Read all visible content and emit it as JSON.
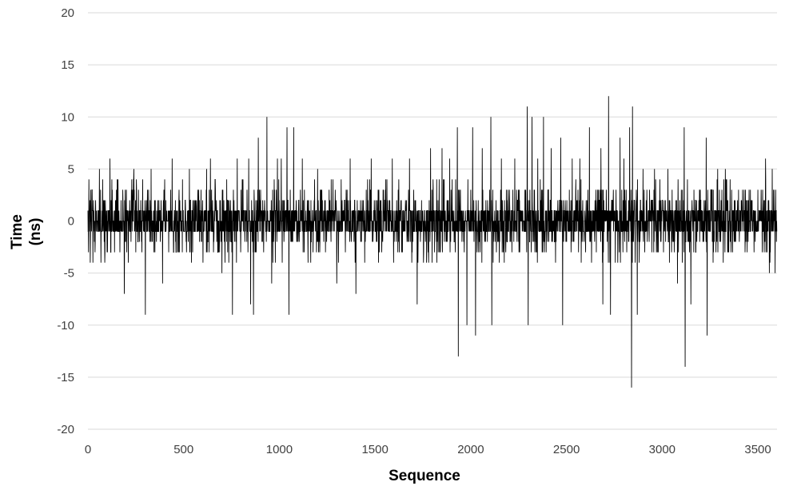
{
  "chart_data": {
    "type": "line",
    "title": "",
    "xlabel": "Sequence",
    "ylabel_lines": [
      "Time",
      "(ns)"
    ],
    "xlim": [
      0,
      3600
    ],
    "ylim": [
      -20,
      20
    ],
    "x_ticks": [
      0,
      500,
      1000,
      1500,
      2000,
      2500,
      3000,
      3500
    ],
    "y_ticks": [
      -20,
      -15,
      -10,
      -5,
      0,
      5,
      10,
      15,
      20
    ],
    "grid": "horizontal",
    "legend": "none",
    "series": [
      {
        "color": "#000000",
        "sample_count": 3600,
        "values_integer_ns": true,
        "peaks": [
          {
            "x": 5,
            "y": 4
          },
          {
            "x": 12,
            "y": -4
          },
          {
            "x": 60,
            "y": 5
          },
          {
            "x": 115,
            "y": 6
          },
          {
            "x": 190,
            "y": -7
          },
          {
            "x": 240,
            "y": 5
          },
          {
            "x": 300,
            "y": -9
          },
          {
            "x": 330,
            "y": 5
          },
          {
            "x": 390,
            "y": -6
          },
          {
            "x": 440,
            "y": 6
          },
          {
            "x": 530,
            "y": 5
          },
          {
            "x": 620,
            "y": 5
          },
          {
            "x": 640,
            "y": 6
          },
          {
            "x": 700,
            "y": -5
          },
          {
            "x": 755,
            "y": -9
          },
          {
            "x": 780,
            "y": 6
          },
          {
            "x": 840,
            "y": 6
          },
          {
            "x": 850,
            "y": -8
          },
          {
            "x": 865,
            "y": -9
          },
          {
            "x": 890,
            "y": 8
          },
          {
            "x": 935,
            "y": 10
          },
          {
            "x": 960,
            "y": -6
          },
          {
            "x": 990,
            "y": 6
          },
          {
            "x": 1010,
            "y": 6
          },
          {
            "x": 1040,
            "y": 9
          },
          {
            "x": 1050,
            "y": -9
          },
          {
            "x": 1075,
            "y": 9
          },
          {
            "x": 1120,
            "y": 6
          },
          {
            "x": 1200,
            "y": 5
          },
          {
            "x": 1300,
            "y": -6
          },
          {
            "x": 1370,
            "y": 6
          },
          {
            "x": 1400,
            "y": -7
          },
          {
            "x": 1480,
            "y": 6
          },
          {
            "x": 1590,
            "y": 6
          },
          {
            "x": 1680,
            "y": 6
          },
          {
            "x": 1720,
            "y": -8
          },
          {
            "x": 1790,
            "y": 7
          },
          {
            "x": 1850,
            "y": 7
          },
          {
            "x": 1890,
            "y": 6
          },
          {
            "x": 1930,
            "y": 9
          },
          {
            "x": 1935,
            "y": -13
          },
          {
            "x": 1980,
            "y": -10
          },
          {
            "x": 2010,
            "y": 9
          },
          {
            "x": 2025,
            "y": -11
          },
          {
            "x": 2060,
            "y": 7
          },
          {
            "x": 2105,
            "y": 10
          },
          {
            "x": 2110,
            "y": -10
          },
          {
            "x": 2160,
            "y": 6
          },
          {
            "x": 2230,
            "y": 6
          },
          {
            "x": 2295,
            "y": 11
          },
          {
            "x": 2300,
            "y": -10
          },
          {
            "x": 2320,
            "y": 10
          },
          {
            "x": 2350,
            "y": 6
          },
          {
            "x": 2380,
            "y": 10
          },
          {
            "x": 2420,
            "y": 7
          },
          {
            "x": 2470,
            "y": 8
          },
          {
            "x": 2480,
            "y": -10
          },
          {
            "x": 2530,
            "y": 6
          },
          {
            "x": 2570,
            "y": 6
          },
          {
            "x": 2620,
            "y": 9
          },
          {
            "x": 2680,
            "y": 7
          },
          {
            "x": 2690,
            "y": -8
          },
          {
            "x": 2720,
            "y": 12
          },
          {
            "x": 2730,
            "y": -9
          },
          {
            "x": 2780,
            "y": 8
          },
          {
            "x": 2800,
            "y": 6
          },
          {
            "x": 2830,
            "y": 9
          },
          {
            "x": 2845,
            "y": 11
          },
          {
            "x": 2840,
            "y": -16
          },
          {
            "x": 2870,
            "y": -9
          },
          {
            "x": 2900,
            "y": 5
          },
          {
            "x": 2960,
            "y": 5
          },
          {
            "x": 3030,
            "y": 5
          },
          {
            "x": 3080,
            "y": -6
          },
          {
            "x": 3115,
            "y": 9
          },
          {
            "x": 3120,
            "y": -14
          },
          {
            "x": 3150,
            "y": -8
          },
          {
            "x": 3230,
            "y": 8
          },
          {
            "x": 3235,
            "y": -11
          },
          {
            "x": 3290,
            "y": 5
          },
          {
            "x": 3330,
            "y": 5
          },
          {
            "x": 3420,
            "y": 3
          },
          {
            "x": 3500,
            "y": 3
          },
          {
            "x": 3540,
            "y": 6
          },
          {
            "x": 3560,
            "y": -5
          },
          {
            "x": 3575,
            "y": 5
          },
          {
            "x": 3590,
            "y": -5
          }
        ]
      }
    ]
  }
}
